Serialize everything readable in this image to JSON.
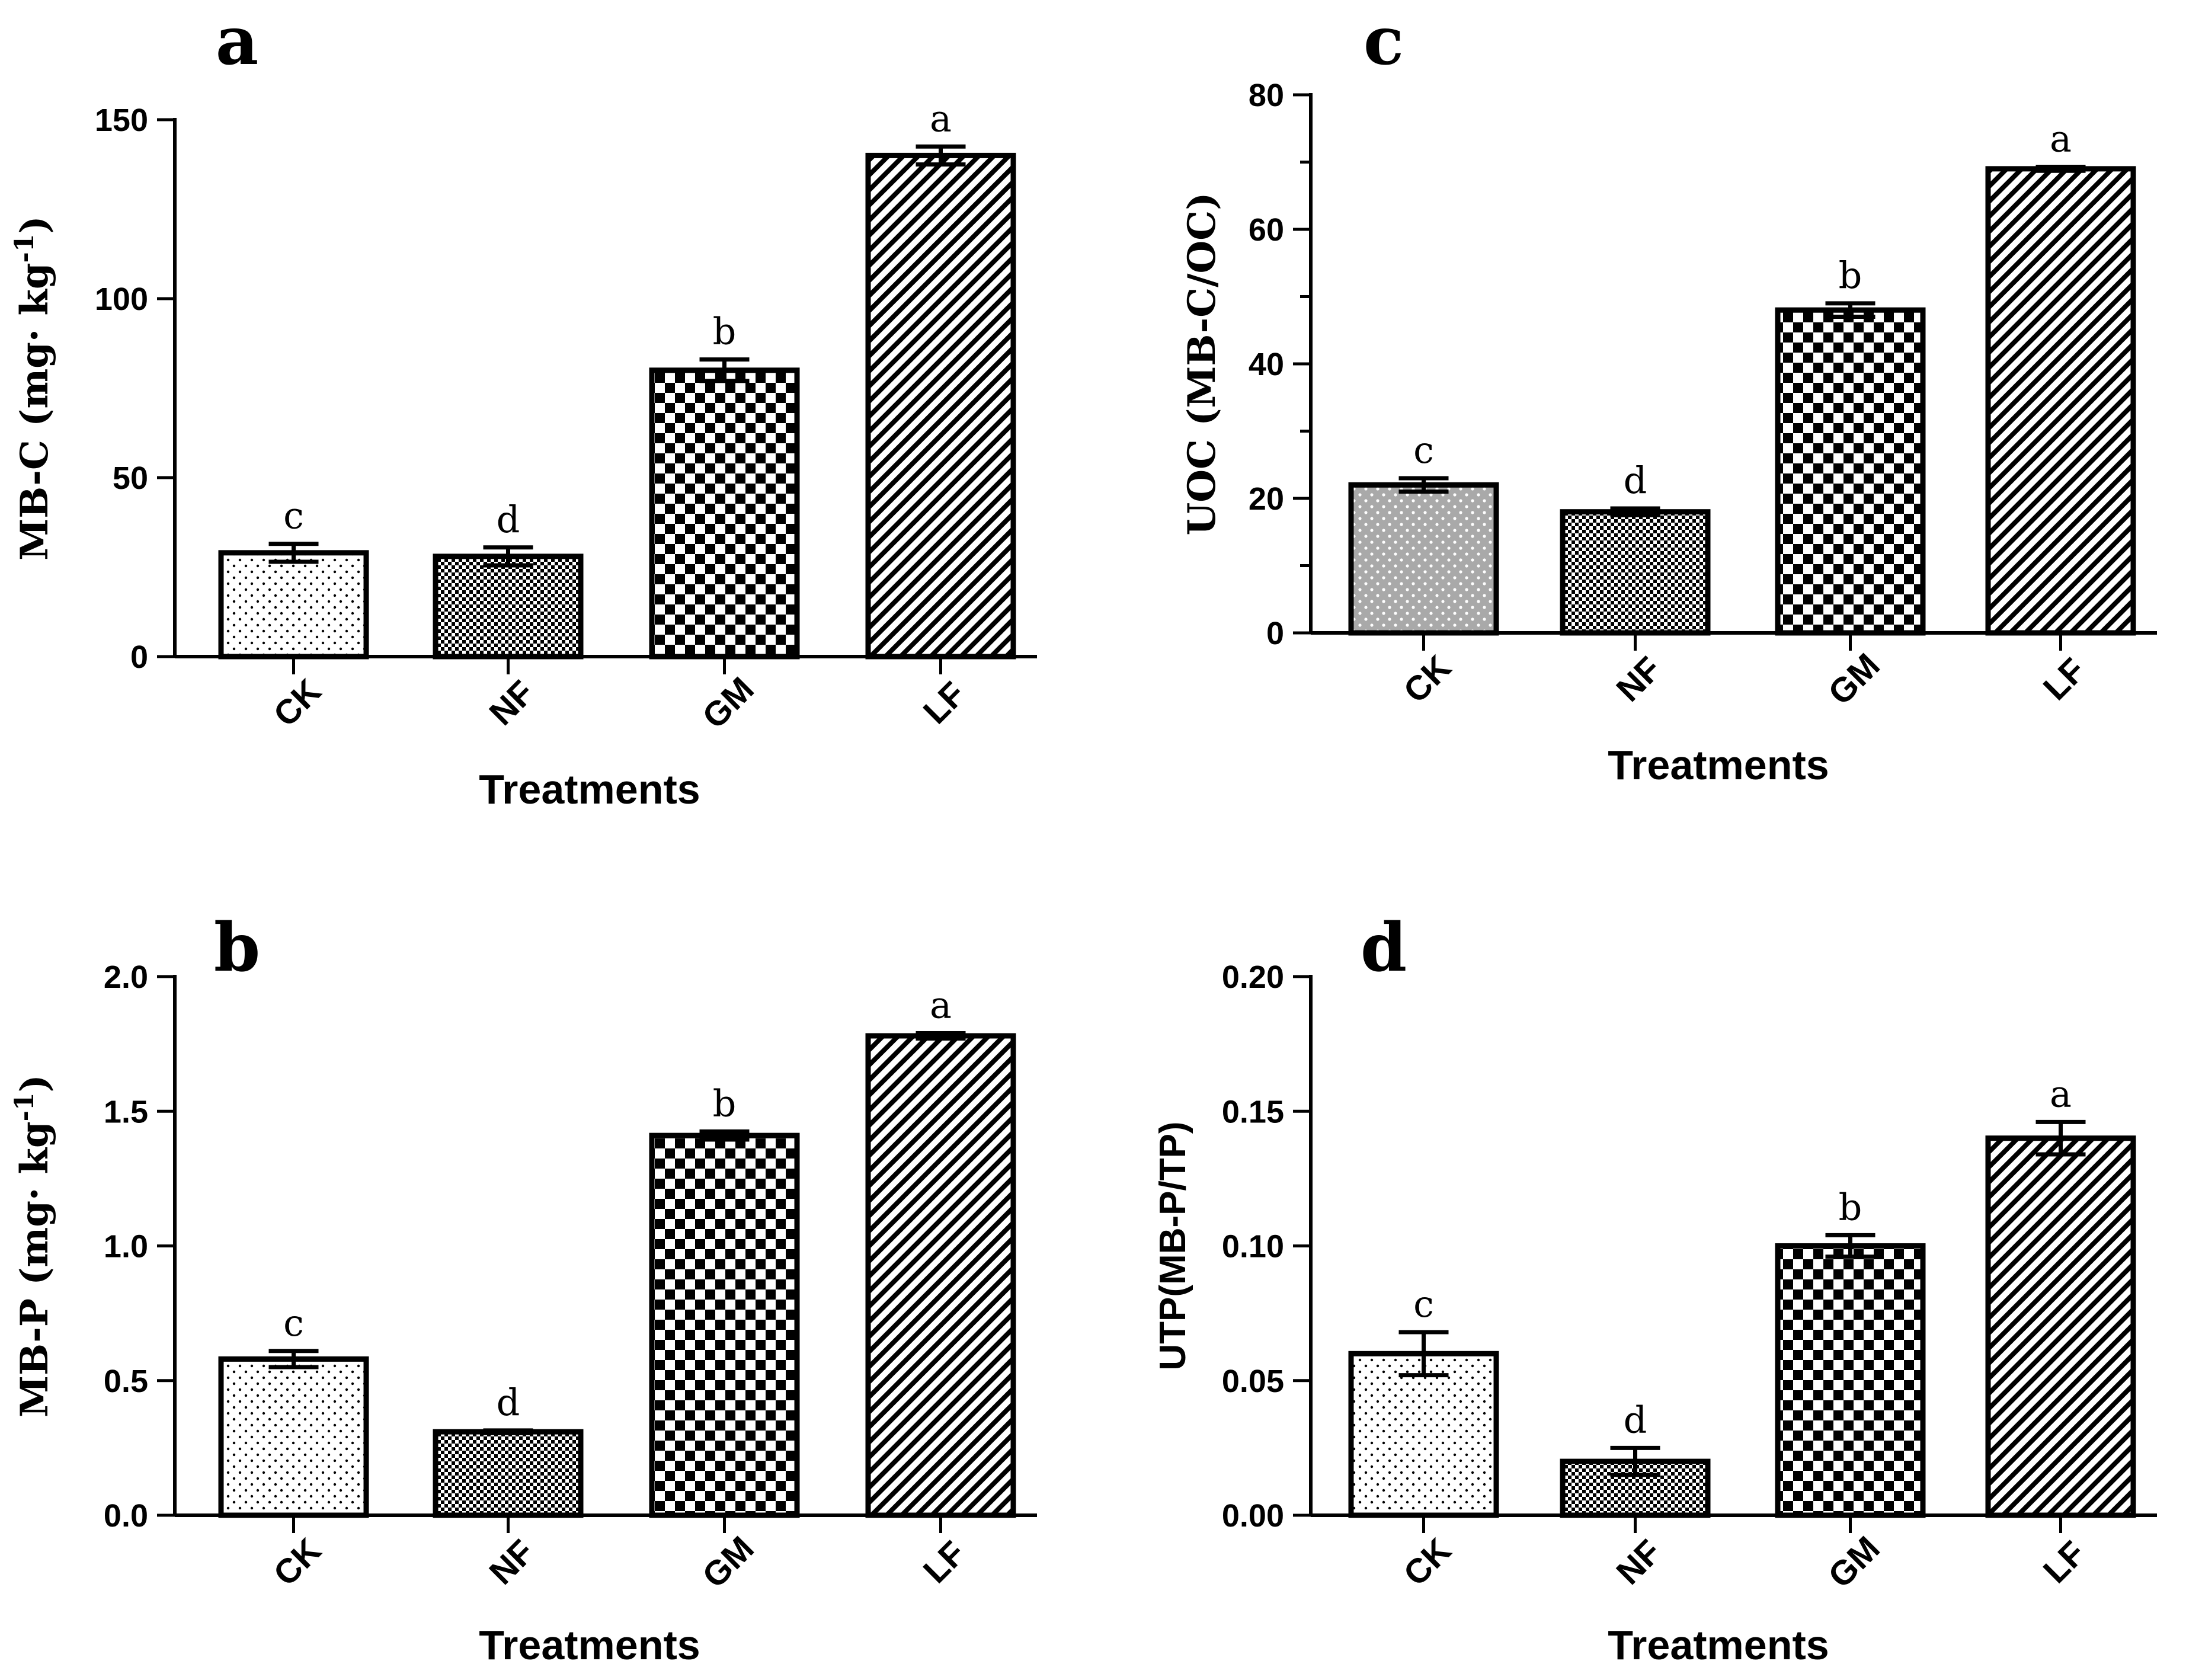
{
  "figure": {
    "x_axis_title": "Treatments",
    "categories": [
      "CK",
      "NF",
      "GM",
      "LF"
    ]
  },
  "chart_data": [
    {
      "panel": "a",
      "type": "bar",
      "categories": [
        "CK",
        "NF",
        "GM",
        "LF"
      ],
      "values": [
        29,
        28,
        80,
        140
      ],
      "errors": [
        2.5,
        2.5,
        3,
        2.5
      ],
      "significance": [
        "c",
        "d",
        "b",
        "a"
      ],
      "patterns": [
        "dots",
        "fine-check",
        "check",
        "diagonal"
      ],
      "ylabel_main": "MB-C (mg· kg",
      "ylabel_sup": "-1",
      "ylabel_close": ")",
      "xlabel": "Treatments",
      "ylim": [
        0,
        150
      ],
      "yticks": [
        0,
        50,
        100,
        150
      ],
      "ytick_labels": [
        "0",
        "50",
        "100",
        "150"
      ],
      "minor_ticks": false
    },
    {
      "panel": "c",
      "type": "bar",
      "categories": [
        "CK",
        "NF",
        "GM",
        "LF"
      ],
      "values": [
        22,
        18,
        48,
        69
      ],
      "errors": [
        1,
        0.5,
        1,
        0.3
      ],
      "significance": [
        "c",
        "d",
        "b",
        "a"
      ],
      "patterns": [
        "gray-dots",
        "fine-check",
        "check",
        "diagonal"
      ],
      "ylabel_main": "UOC (MB-C/OC)",
      "ylabel_sup": "",
      "ylabel_close": "",
      "xlabel": "Treatments",
      "ylim": [
        0,
        80
      ],
      "yticks": [
        0,
        20,
        40,
        60,
        80
      ],
      "ytick_labels": [
        "0",
        "20",
        "40",
        "60",
        "80"
      ],
      "minor_ticks": true
    },
    {
      "panel": "b",
      "type": "bar",
      "categories": [
        "CK",
        "NF",
        "GM",
        "LF"
      ],
      "values": [
        0.58,
        0.31,
        1.41,
        1.78
      ],
      "errors": [
        0.03,
        0.005,
        0.015,
        0.01
      ],
      "significance": [
        "c",
        "d",
        "b",
        "a"
      ],
      "patterns": [
        "dots",
        "fine-check",
        "check",
        "diagonal"
      ],
      "ylabel_main": "MB-P (mg· kg",
      "ylabel_sup": "-1",
      "ylabel_close": ")",
      "xlabel": "Treatments",
      "ylim": [
        0,
        2.0
      ],
      "yticks": [
        0,
        0.5,
        1.0,
        1.5,
        2.0
      ],
      "ytick_labels": [
        "0.0",
        "0.5",
        "1.0",
        "1.5",
        "2.0"
      ],
      "minor_ticks": false
    },
    {
      "panel": "d",
      "type": "bar",
      "categories": [
        "CK",
        "NF",
        "GM",
        "LF"
      ],
      "values": [
        0.06,
        0.02,
        0.1,
        0.14
      ],
      "errors": [
        0.008,
        0.005,
        0.004,
        0.006
      ],
      "significance": [
        "c",
        "d",
        "b",
        "a"
      ],
      "patterns": [
        "dots",
        "fine-check",
        "check",
        "diagonal"
      ],
      "ylabel_main": "UTP(MB-P/TP)",
      "ylabel_sup": "",
      "ylabel_close": "",
      "xlabel": "Treatments",
      "ylim": [
        0,
        0.2
      ],
      "yticks": [
        0,
        0.05,
        0.1,
        0.15,
        0.2
      ],
      "ytick_labels": [
        "0.00",
        "0.05",
        "0.10",
        "0.15",
        "0.20"
      ],
      "minor_ticks": false
    }
  ]
}
